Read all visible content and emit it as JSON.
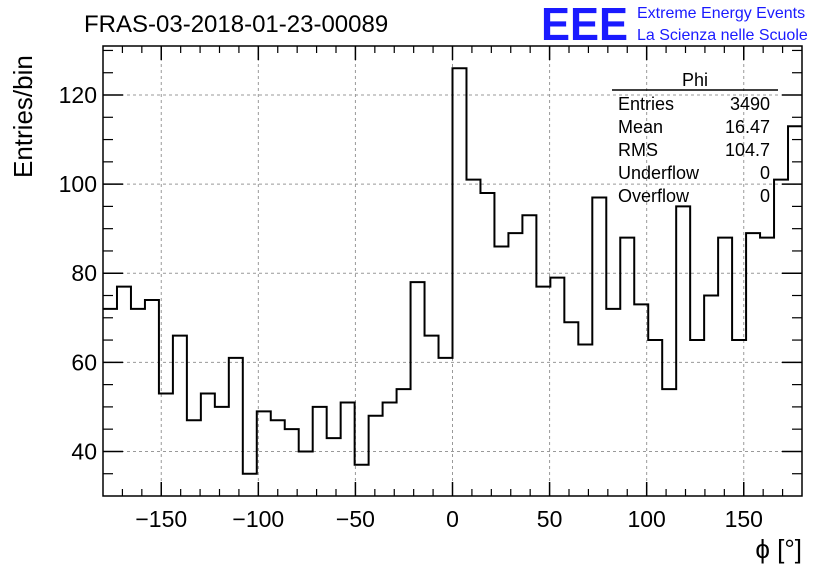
{
  "chart_data": {
    "type": "histogram",
    "title": "FRAS-03-2018-01-23-00089",
    "xlabel": "ϕ [°]",
    "ylabel": "Entries/bin",
    "xlim": [
      -180,
      180
    ],
    "ylim": [
      30,
      131
    ],
    "bin_width": 7.2,
    "grid": true,
    "x_ticks": [
      -150,
      -100,
      -50,
      0,
      50,
      100,
      150
    ],
    "x_tick_labels": [
      "−150",
      "−100",
      "−50",
      "0",
      "50",
      "100",
      "150"
    ],
    "y_ticks": [
      40,
      60,
      80,
      100,
      120
    ],
    "y_tick_labels": [
      "40",
      "60",
      "80",
      "100",
      "120"
    ],
    "values": [
      72,
      77,
      72,
      74,
      53,
      66,
      47,
      53,
      50,
      61,
      35,
      49,
      47,
      45,
      40,
      50,
      43,
      51,
      37,
      48,
      51,
      54,
      78,
      66,
      61,
      126,
      101,
      98,
      86,
      89,
      93,
      77,
      79,
      69,
      64,
      97,
      72,
      88,
      73,
      65,
      54,
      95,
      65,
      75,
      88,
      65,
      89,
      88,
      101,
      113
    ],
    "stats": {
      "header": "Phi",
      "rows": [
        {
          "label": "Entries",
          "value": "3490"
        },
        {
          "label": "Mean",
          "value": "16.47"
        },
        {
          "label": "RMS",
          "value": "104.7"
        },
        {
          "label": "Underflow",
          "value": "0"
        },
        {
          "label": "Overflow",
          "value": "0"
        }
      ]
    }
  },
  "logo": {
    "mark": "EEE",
    "line1": "Extreme Energy Events",
    "line2": "La Scienza nelle Scuole",
    "color": "#1a1aff"
  }
}
